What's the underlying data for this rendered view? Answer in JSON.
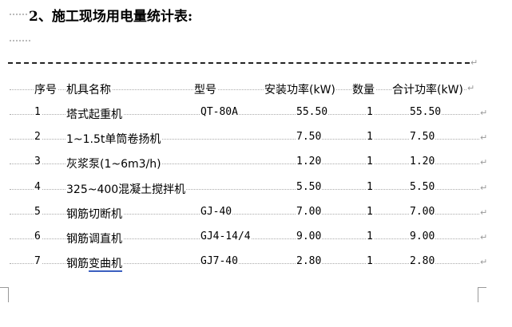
{
  "title": "2、施工现场用电量统计表:",
  "table": {
    "headers": [
      "序号",
      "机具名称",
      "型号",
      "安装功率(kW)",
      "数量",
      "合计功率(kW)"
    ],
    "rows": [
      [
        "1",
        "塔式起重机",
        "QT-80A",
        "55.50",
        "1",
        "55.50"
      ],
      [
        "2",
        "1~1.5t单筒卷扬机",
        "",
        "7.50",
        "1",
        "7.50"
      ],
      [
        "3",
        "灰浆泵(1~6m3/h)",
        "",
        "1.20",
        "1",
        "1.20"
      ],
      [
        "4",
        "325~400混凝土搅拌机",
        "",
        "5.50",
        "1",
        "5.50"
      ],
      [
        "5",
        "钢筋切断机",
        "GJ-40",
        "7.00",
        "1",
        "7.00"
      ],
      [
        "6",
        "钢筋调直机",
        "GJ4-14/4",
        "9.00",
        "1",
        "9.00"
      ],
      [
        "7",
        "钢筋变曲机",
        "GJ7-40",
        "2.80",
        "1",
        "2.80"
      ]
    ]
  },
  "marks": {
    "paragraph": "↵"
  }
}
